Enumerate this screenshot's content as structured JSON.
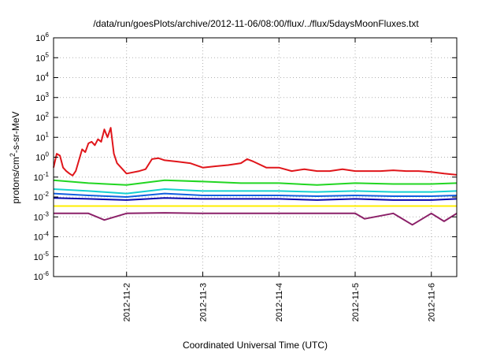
{
  "chart_data": {
    "type": "line",
    "title": "/data/run/goesPlots/archive/2012-11-06/08:00/flux/../flux/5daysMoonFluxes.txt",
    "xlabel": "Coordinated Universal Time (UTC)",
    "ylabel": "protons/cm2-s-sr-MeV",
    "ylabel_parts": {
      "pre": "protons/cm",
      "sup": "2",
      "post": "-s-sr-MeV"
    },
    "y_scale": "log",
    "ylim": [
      1e-06,
      1000000.0
    ],
    "y_ticks": [
      {
        "value": 1000000.0,
        "base": "10",
        "exp": "6"
      },
      {
        "value": 100000.0,
        "base": "10",
        "exp": "5"
      },
      {
        "value": 10000.0,
        "base": "10",
        "exp": "4"
      },
      {
        "value": 1000.0,
        "base": "10",
        "exp": "3"
      },
      {
        "value": 100.0,
        "base": "10",
        "exp": "2"
      },
      {
        "value": 10.0,
        "base": "10",
        "exp": "1"
      },
      {
        "value": 1.0,
        "base": "10",
        "exp": "0"
      },
      {
        "value": 0.1,
        "base": "10",
        "exp": "-1"
      },
      {
        "value": 0.01,
        "base": "10",
        "exp": "-2"
      },
      {
        "value": 0.001,
        "base": "10",
        "exp": "-3"
      },
      {
        "value": 0.0001,
        "base": "10",
        "exp": "-4"
      },
      {
        "value": 1e-05,
        "base": "10",
        "exp": "-5"
      },
      {
        "value": 1e-06,
        "base": "10",
        "exp": "-6"
      }
    ],
    "xlim": [
      "2012-11-01T01:00",
      "2012-11-06T08:00"
    ],
    "x_ticks": [
      "2012-11-2",
      "2012-11-3",
      "2012-11-4",
      "2012-11-5",
      "2012-11-6"
    ],
    "x_tick_dates": [
      "2012-11-02T00:00",
      "2012-11-03T00:00",
      "2012-11-04T00:00",
      "2012-11-05T00:00",
      "2012-11-06T00:00"
    ],
    "grid": true,
    "legend": "none",
    "series": [
      {
        "color": "#e0161b",
        "x": [
          "2012-11-01T01:00",
          "2012-11-01T02:00",
          "2012-11-01T03:00",
          "2012-11-01T04:00",
          "2012-11-01T05:00",
          "2012-11-01T06:00",
          "2012-11-01T07:00",
          "2012-11-01T08:00",
          "2012-11-01T10:00",
          "2012-11-01T11:00",
          "2012-11-01T12:00",
          "2012-11-01T13:00",
          "2012-11-01T14:00",
          "2012-11-01T15:00",
          "2012-11-01T16:00",
          "2012-11-01T17:00",
          "2012-11-01T18:00",
          "2012-11-01T19:00",
          "2012-11-01T20:00",
          "2012-11-01T21:00",
          "2012-11-02T00:00",
          "2012-11-02T04:00",
          "2012-11-02T06:00",
          "2012-11-02T08:00",
          "2012-11-02T10:00",
          "2012-11-02T12:00",
          "2012-11-02T16:00",
          "2012-11-02T20:00",
          "2012-11-03T00:00",
          "2012-11-03T04:00",
          "2012-11-03T08:00",
          "2012-11-03T12:00",
          "2012-11-03T14:00",
          "2012-11-03T16:00",
          "2012-11-03T20:00",
          "2012-11-04T00:00",
          "2012-11-04T04:00",
          "2012-11-04T08:00",
          "2012-11-04T12:00",
          "2012-11-04T16:00",
          "2012-11-04T20:00",
          "2012-11-05T00:00",
          "2012-11-05T04:00",
          "2012-11-05T08:00",
          "2012-11-05T12:00",
          "2012-11-05T16:00",
          "2012-11-05T20:00",
          "2012-11-06T00:00",
          "2012-11-06T04:00",
          "2012-11-06T08:00"
        ],
        "y": [
          0.3,
          1.5,
          1.2,
          0.3,
          0.2,
          0.15,
          0.12,
          0.2,
          2.5,
          1.8,
          5,
          6,
          4,
          8,
          6,
          25,
          10,
          30,
          1.5,
          0.5,
          0.15,
          0.2,
          0.25,
          0.8,
          0.9,
          0.7,
          0.6,
          0.5,
          0.3,
          0.35,
          0.4,
          0.5,
          0.8,
          0.6,
          0.3,
          0.3,
          0.2,
          0.25,
          0.2,
          0.2,
          0.25,
          0.2,
          0.2,
          0.2,
          0.22,
          0.2,
          0.2,
          0.18,
          0.15,
          0.13
        ]
      },
      {
        "color": "#22d622",
        "x": [
          "2012-11-01T01:00",
          "2012-11-01T12:00",
          "2012-11-02T00:00",
          "2012-11-02T12:00",
          "2012-11-03T00:00",
          "2012-11-03T12:00",
          "2012-11-04T00:00",
          "2012-11-04T12:00",
          "2012-11-05T00:00",
          "2012-11-05T12:00",
          "2012-11-06T00:00",
          "2012-11-06T08:00"
        ],
        "y": [
          0.07,
          0.05,
          0.04,
          0.07,
          0.06,
          0.05,
          0.05,
          0.04,
          0.05,
          0.045,
          0.045,
          0.05
        ]
      },
      {
        "color": "#15d0d0",
        "x": [
          "2012-11-01T01:00",
          "2012-11-01T12:00",
          "2012-11-02T00:00",
          "2012-11-02T12:00",
          "2012-11-03T00:00",
          "2012-11-03T12:00",
          "2012-11-04T00:00",
          "2012-11-04T12:00",
          "2012-11-05T00:00",
          "2012-11-05T12:00",
          "2012-11-06T00:00",
          "2012-11-06T08:00"
        ],
        "y": [
          0.025,
          0.02,
          0.015,
          0.025,
          0.02,
          0.02,
          0.02,
          0.018,
          0.02,
          0.018,
          0.018,
          0.02
        ]
      },
      {
        "color": "#1060e0",
        "x": [
          "2012-11-01T01:00",
          "2012-11-01T12:00",
          "2012-11-02T00:00",
          "2012-11-02T12:00",
          "2012-11-03T00:00",
          "2012-11-03T12:00",
          "2012-11-04T00:00",
          "2012-11-04T12:00",
          "2012-11-05T00:00",
          "2012-11-05T12:00",
          "2012-11-06T00:00",
          "2012-11-06T08:00"
        ],
        "y": [
          0.015,
          0.012,
          0.01,
          0.015,
          0.012,
          0.012,
          0.012,
          0.011,
          0.012,
          0.011,
          0.011,
          0.012
        ]
      },
      {
        "color": "#0a0ab0",
        "x": [
          "2012-11-01T01:00",
          "2012-11-01T12:00",
          "2012-11-02T00:00",
          "2012-11-02T12:00",
          "2012-11-03T00:00",
          "2012-11-03T12:00",
          "2012-11-04T00:00",
          "2012-11-04T12:00",
          "2012-11-05T00:00",
          "2012-11-05T12:00",
          "2012-11-06T00:00",
          "2012-11-06T08:00"
        ],
        "y": [
          0.009,
          0.008,
          0.007,
          0.009,
          0.008,
          0.008,
          0.008,
          0.007,
          0.008,
          0.007,
          0.007,
          0.008
        ]
      },
      {
        "color": "#ffee00",
        "x": [
          "2012-11-01T01:00",
          "2012-11-01T12:00",
          "2012-11-02T00:00",
          "2012-11-02T12:00",
          "2012-11-03T00:00",
          "2012-11-03T12:00",
          "2012-11-04T00:00",
          "2012-11-04T12:00",
          "2012-11-05T00:00",
          "2012-11-05T12:00",
          "2012-11-06T00:00",
          "2012-11-06T08:00"
        ],
        "y": [
          0.0035,
          0.0035,
          0.0035,
          0.0035,
          0.0035,
          0.0035,
          0.0035,
          0.0035,
          0.0035,
          0.0035,
          0.0035,
          0.0035
        ]
      },
      {
        "color": "#8b2068",
        "x": [
          "2012-11-01T01:00",
          "2012-11-01T12:00",
          "2012-11-01T17:00",
          "2012-11-02T00:00",
          "2012-11-02T12:00",
          "2012-11-03T00:00",
          "2012-11-03T12:00",
          "2012-11-04T00:00",
          "2012-11-04T12:00",
          "2012-11-05T00:00",
          "2012-11-05T03:00",
          "2012-11-05T12:00",
          "2012-11-05T18:00",
          "2012-11-06T00:00",
          "2012-11-06T04:00",
          "2012-11-06T08:00"
        ],
        "y": [
          0.0015,
          0.0015,
          0.0007,
          0.0015,
          0.0016,
          0.0015,
          0.0015,
          0.0015,
          0.0015,
          0.0015,
          0.0008,
          0.0015,
          0.0004,
          0.0015,
          0.0006,
          0.0015
        ]
      }
    ]
  }
}
